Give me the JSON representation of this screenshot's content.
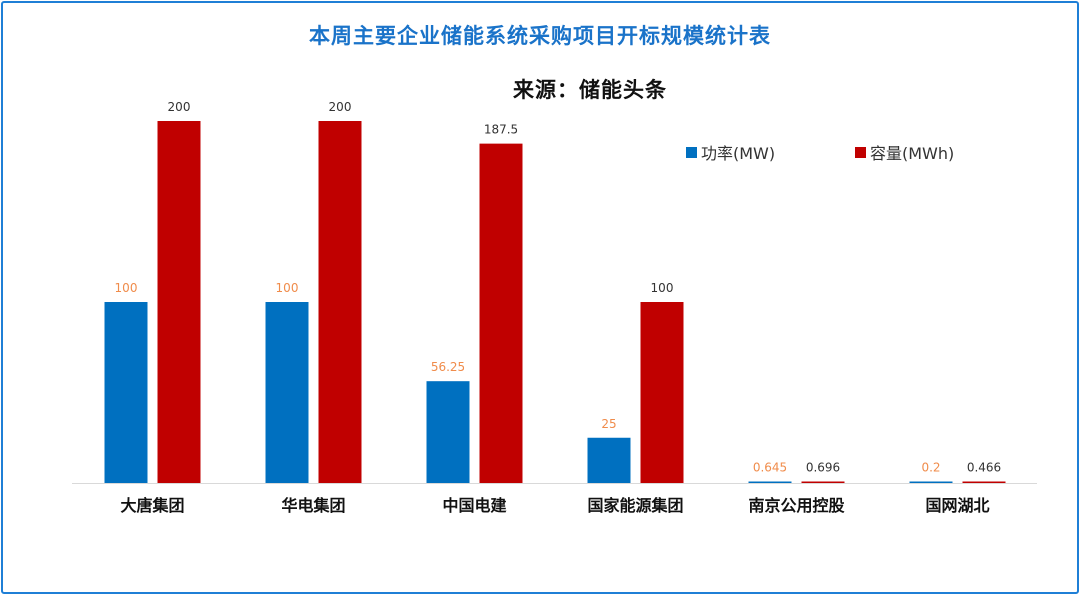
{
  "chart_data": {
    "type": "bar",
    "title": "本周主要企业储能系统采购项目开标规模统计表",
    "subtitle": "来源：储能头条",
    "categories": [
      "大唐集团",
      "华电集团",
      "中国电建",
      "国家能源集团",
      "南京公用控股",
      "国网湖北"
    ],
    "series": [
      {
        "name": "功率(MW)",
        "color": "#0070c0",
        "label_color": "#f08c4b",
        "values": [
          100,
          100,
          56.25,
          25,
          0.645,
          0.2
        ],
        "labels": [
          "100",
          "100",
          "56.25",
          "25",
          "0.645",
          "0.2"
        ]
      },
      {
        "name": "容量(MWh)",
        "color": "#c00000",
        "label_color": "#333333",
        "values": [
          200,
          200,
          187.5,
          100,
          0.696,
          0.466
        ],
        "labels": [
          "200",
          "200",
          "187.5",
          "100",
          "0.696",
          "0.466"
        ]
      }
    ],
    "ylim": [
      0,
      200
    ],
    "grid": false,
    "legend_position": "top-right"
  }
}
